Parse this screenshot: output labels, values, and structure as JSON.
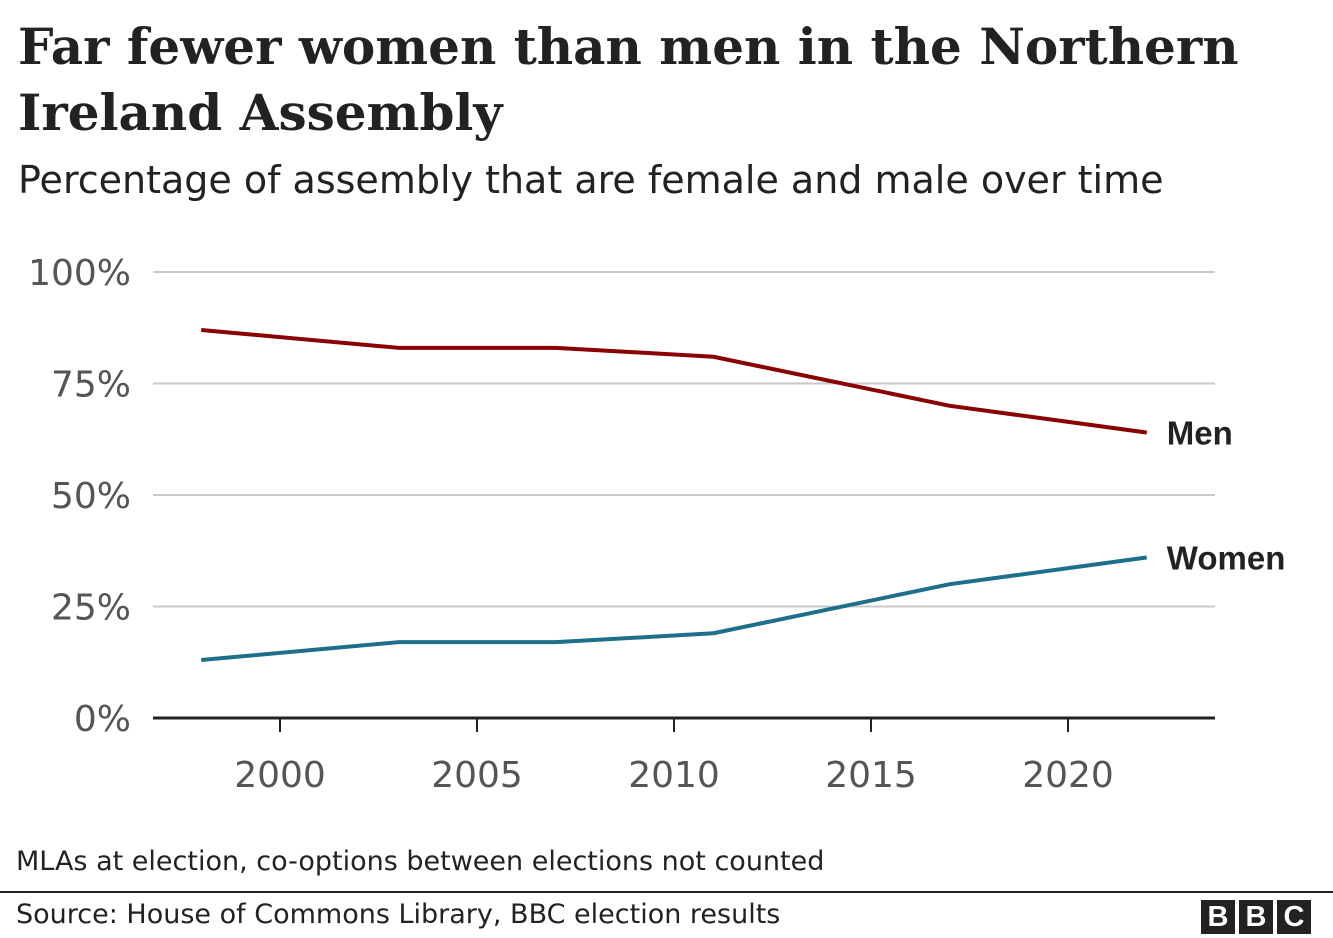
{
  "chart_data": {
    "type": "line",
    "title": "Far fewer women than men in the Northern Ireland Assembly",
    "subtitle": "Percentage of assembly that are female and male over time",
    "x": [
      1998,
      2003,
      2007,
      2011,
      2017,
      2022
    ],
    "series": [
      {
        "name": "Men",
        "values": [
          87,
          83,
          83,
          81,
          70,
          64
        ],
        "color": "#8b0000"
      },
      {
        "name": "Women",
        "values": [
          13,
          17,
          17,
          19,
          30,
          36
        ],
        "color": "#1d6f8c"
      }
    ],
    "ylim": [
      0,
      100
    ],
    "yticks": [
      0,
      25,
      50,
      75,
      100
    ],
    "ytick_labels": [
      "0%",
      "25%",
      "50%",
      "75%",
      "100%"
    ],
    "xticks": [
      2000,
      2005,
      2010,
      2015,
      2020
    ],
    "xtick_labels": [
      "2000",
      "2005",
      "2010",
      "2015",
      "2020"
    ],
    "grid": true,
    "legend": "direct labels at line ends",
    "note": "MLAs at election, co-options between elections not counted",
    "source": "Source: House of Commons Library, BBC election results"
  },
  "logo": [
    "B",
    "B",
    "C"
  ]
}
